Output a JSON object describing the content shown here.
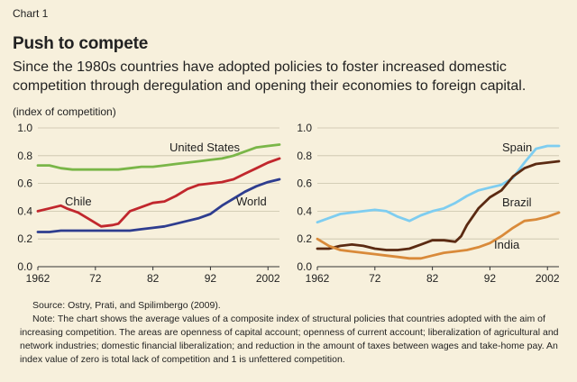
{
  "header": {
    "chart_number": "Chart 1",
    "title": "Push to compete",
    "subtitle": "Since the 1980s countries have adopted policies to foster increased domestic competition through deregulation and opening their economies to foreign capital.",
    "unit_label": "(index of competition)"
  },
  "footer": {
    "source": "Source: Ostry, Prati, and Spilimbergo (2009).",
    "note": "Note: The chart shows the average values of a composite index of structural policies that countries adopted with the aim of increasing competition. The areas are openness of capital account; openness of current account; liberalization of agricultural and network industries; domestic financial liberalization; and reduction in the amount of taxes between wages and take-home pay. An index value of zero is total lack of competition and 1 is unfettered competition."
  },
  "colors": {
    "United States": "#7ab648",
    "Chile": "#c1272d",
    "World": "#2e3d8f",
    "Spain": "#7ecdf0",
    "Brazil": "#5b2a12",
    "India": "#d98a3a",
    "grid": "#c9c2aa",
    "background": "#f7f0dc"
  },
  "chart_data": [
    {
      "type": "line",
      "ylabel": "(index of competition)",
      "ylim": [
        0,
        1.0
      ],
      "yticks": [
        "0.0",
        "0.2",
        "0.4",
        "0.6",
        "0.8",
        "1.0"
      ],
      "xlim": [
        1962,
        2004
      ],
      "xticks": [
        "1962",
        "72",
        "82",
        "92",
        "2002"
      ],
      "grid": true,
      "series": [
        {
          "name": "United States",
          "x": [
            1962,
            1964,
            1966,
            1968,
            1970,
            1972,
            1974,
            1976,
            1978,
            1980,
            1982,
            1984,
            1986,
            1988,
            1990,
            1992,
            1994,
            1996,
            1998,
            2000,
            2002,
            2004
          ],
          "values": [
            0.73,
            0.73,
            0.71,
            0.7,
            0.7,
            0.7,
            0.7,
            0.7,
            0.71,
            0.72,
            0.72,
            0.73,
            0.74,
            0.75,
            0.76,
            0.77,
            0.78,
            0.8,
            0.83,
            0.86,
            0.87,
            0.88
          ]
        },
        {
          "name": "Chile",
          "x": [
            1962,
            1964,
            1966,
            1967,
            1969,
            1971,
            1973,
            1975,
            1976,
            1978,
            1980,
            1982,
            1984,
            1986,
            1988,
            1990,
            1992,
            1994,
            1996,
            1998,
            2000,
            2002,
            2004
          ],
          "values": [
            0.4,
            0.42,
            0.44,
            0.42,
            0.39,
            0.34,
            0.29,
            0.3,
            0.31,
            0.4,
            0.43,
            0.46,
            0.47,
            0.51,
            0.56,
            0.59,
            0.6,
            0.61,
            0.63,
            0.67,
            0.71,
            0.75,
            0.78
          ]
        },
        {
          "name": "World",
          "x": [
            1962,
            1964,
            1966,
            1968,
            1970,
            1972,
            1974,
            1976,
            1978,
            1980,
            1982,
            1984,
            1986,
            1988,
            1990,
            1992,
            1994,
            1996,
            1998,
            2000,
            2002,
            2004
          ],
          "values": [
            0.25,
            0.25,
            0.26,
            0.26,
            0.26,
            0.26,
            0.26,
            0.26,
            0.26,
            0.27,
            0.28,
            0.29,
            0.31,
            0.33,
            0.35,
            0.38,
            0.44,
            0.49,
            0.54,
            0.58,
            0.61,
            0.63
          ]
        }
      ],
      "annotations": [
        "United States",
        "Chile",
        "World"
      ]
    },
    {
      "type": "line",
      "ylim": [
        0,
        1.0
      ],
      "yticks": [
        "0.0",
        "0.2",
        "0.4",
        "0.6",
        "0.8",
        "1.0"
      ],
      "xlim": [
        1962,
        2004
      ],
      "xticks": [
        "1962",
        "72",
        "82",
        "92",
        "2002"
      ],
      "grid": true,
      "series": [
        {
          "name": "Spain",
          "x": [
            1962,
            1964,
            1966,
            1968,
            1970,
            1972,
            1974,
            1976,
            1978,
            1980,
            1982,
            1984,
            1986,
            1988,
            1990,
            1992,
            1994,
            1996,
            1998,
            2000,
            2002,
            2004
          ],
          "values": [
            0.32,
            0.35,
            0.38,
            0.39,
            0.4,
            0.41,
            0.4,
            0.36,
            0.33,
            0.37,
            0.4,
            0.42,
            0.46,
            0.51,
            0.55,
            0.57,
            0.59,
            0.64,
            0.75,
            0.85,
            0.87,
            0.87
          ]
        },
        {
          "name": "Brazil",
          "x": [
            1962,
            1964,
            1966,
            1968,
            1970,
            1972,
            1974,
            1976,
            1978,
            1980,
            1982,
            1984,
            1986,
            1987,
            1988,
            1990,
            1992,
            1994,
            1996,
            1998,
            2000,
            2002,
            2004
          ],
          "values": [
            0.13,
            0.13,
            0.15,
            0.16,
            0.15,
            0.13,
            0.12,
            0.12,
            0.13,
            0.16,
            0.19,
            0.19,
            0.18,
            0.22,
            0.3,
            0.42,
            0.5,
            0.55,
            0.65,
            0.71,
            0.74,
            0.75,
            0.76
          ]
        },
        {
          "name": "India",
          "x": [
            1962,
            1964,
            1966,
            1968,
            1970,
            1972,
            1974,
            1976,
            1978,
            1980,
            1982,
            1984,
            1986,
            1988,
            1990,
            1992,
            1994,
            1996,
            1998,
            2000,
            2002,
            2004
          ],
          "values": [
            0.2,
            0.15,
            0.12,
            0.11,
            0.1,
            0.09,
            0.08,
            0.07,
            0.06,
            0.06,
            0.08,
            0.1,
            0.11,
            0.12,
            0.14,
            0.17,
            0.22,
            0.28,
            0.33,
            0.34,
            0.36,
            0.39
          ]
        }
      ],
      "annotations": [
        "Spain",
        "Brazil",
        "India"
      ]
    }
  ]
}
